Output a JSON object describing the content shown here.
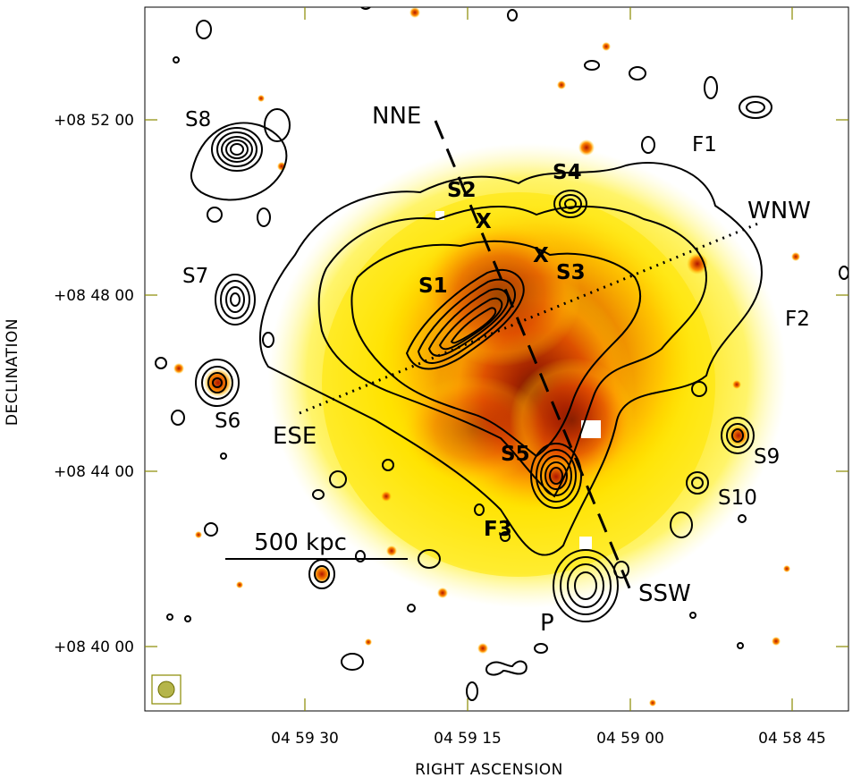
{
  "axes": {
    "xlabel": "RIGHT ASCENSION",
    "ylabel": "DECLINATION",
    "x_ticks": [
      "04 59 30",
      "04 59 15",
      "04 59 00",
      "04 58 45"
    ],
    "y_ticks": [
      "+08 52 00",
      "+08 48 00",
      "+08 44 00",
      "+08 40 00"
    ]
  },
  "labels": {
    "S1": "S1",
    "S2": "S2",
    "S3": "S3",
    "S4": "S4",
    "S5": "S5",
    "S6": "S6",
    "S7": "S7",
    "S8": "S8",
    "S9": "S9",
    "S10": "S10",
    "F1": "F1",
    "F2": "F2",
    "F3": "F3",
    "P": "P",
    "NNE": "NNE",
    "SSW": "SSW",
    "WNW": "WNW",
    "ESE": "ESE",
    "X1": "X",
    "X2": "X"
  },
  "scalebar": {
    "label": "500 kpc"
  },
  "colors": {
    "emission_core": "#7a0a00",
    "emission_mid": "#d83a00",
    "emission_outer": "#ffd000",
    "emission_faint": "#fff59a",
    "contour": "#000000"
  }
}
